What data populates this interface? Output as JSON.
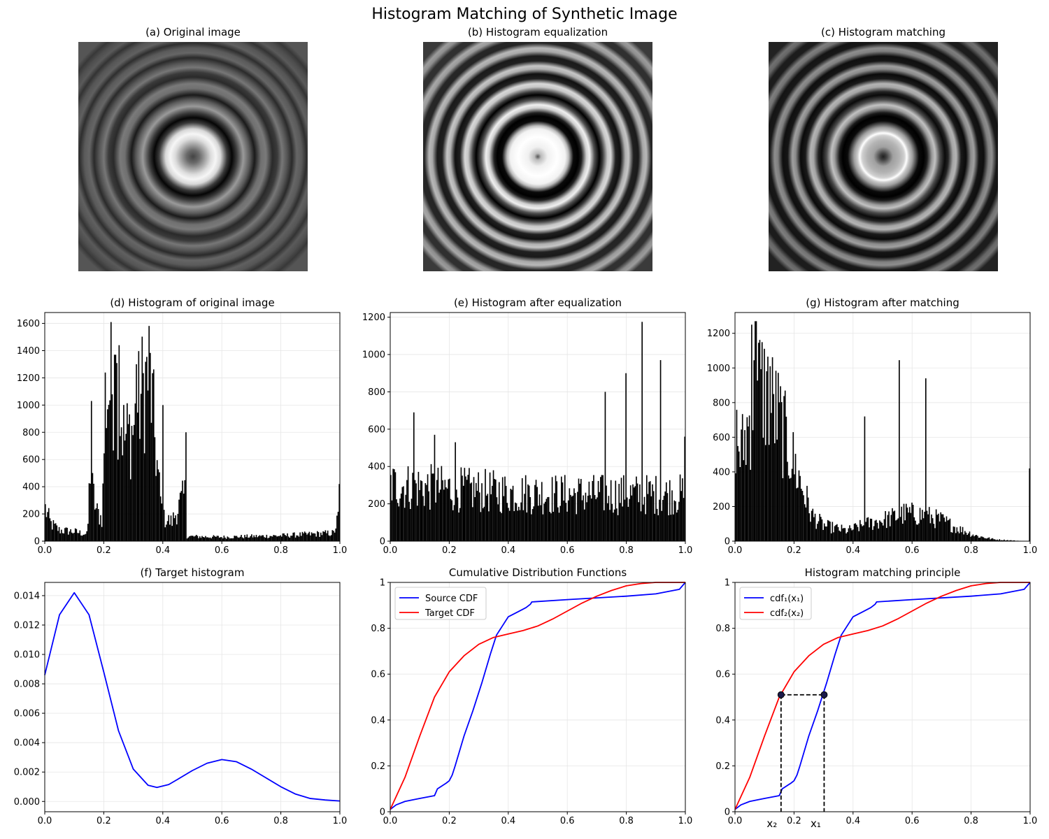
{
  "figure": {
    "title": "Histogram Matching of Synthetic Image"
  },
  "images": [
    {
      "title": "(a) Original image",
      "style": "original"
    },
    {
      "title": "(b) Histogram equalization",
      "style": "equalized"
    },
    {
      "title": "(c) Histogram matching",
      "style": "matched"
    }
  ],
  "colors": {
    "source": "#0000ff",
    "target": "#ff0000",
    "bars": "#000000",
    "grid": "#e6e6e6"
  },
  "chart_data": [
    {
      "id": "d",
      "type": "bar",
      "title": "(d) Histogram of original image",
      "xlim": [
        0,
        1
      ],
      "ylim": [
        0,
        1680
      ],
      "xticks": [
        0.0,
        0.2,
        0.4,
        0.6,
        0.8,
        1.0
      ],
      "yticks": [
        0,
        200,
        400,
        600,
        800,
        1000,
        1200,
        1400,
        1600
      ],
      "grid": true,
      "bins": 256,
      "profile": [
        [
          0.0,
          250
        ],
        [
          0.02,
          130
        ],
        [
          0.05,
          80
        ],
        [
          0.1,
          70
        ],
        [
          0.145,
          50
        ],
        [
          0.155,
          600
        ],
        [
          0.16,
          400
        ],
        [
          0.175,
          220
        ],
        [
          0.195,
          160
        ],
        [
          0.205,
          1050
        ],
        [
          0.24,
          1200
        ],
        [
          0.27,
          750
        ],
        [
          0.3,
          820
        ],
        [
          0.33,
          1100
        ],
        [
          0.355,
          1250
        ],
        [
          0.37,
          850
        ],
        [
          0.385,
          450
        ],
        [
          0.4,
          170
        ],
        [
          0.43,
          140
        ],
        [
          0.46,
          280
        ],
        [
          0.475,
          340
        ],
        [
          0.48,
          35
        ],
        [
          0.6,
          30
        ],
        [
          0.8,
          40
        ],
        [
          0.98,
          60
        ],
        [
          1.0,
          220
        ]
      ],
      "spikes": [
        [
          0.157,
          1030
        ],
        [
          0.225,
          1610
        ],
        [
          0.238,
          1370
        ],
        [
          0.253,
          1440
        ],
        [
          0.352,
          1530
        ],
        [
          0.312,
          1300
        ],
        [
          0.4,
          1000
        ],
        [
          0.477,
          800
        ],
        [
          0.997,
          420
        ]
      ]
    },
    {
      "id": "e",
      "type": "bar",
      "title": "(e) Histogram after equalization",
      "xlim": [
        0,
        1
      ],
      "ylim": [
        0,
        1225
      ],
      "xticks": [
        0.0,
        0.2,
        0.4,
        0.6,
        0.8,
        1.0
      ],
      "yticks": [
        0,
        200,
        400,
        600,
        800,
        1000,
        1200
      ],
      "grid": true,
      "bins": 256,
      "profile": [
        [
          0.0,
          300
        ],
        [
          0.2,
          280
        ],
        [
          0.4,
          260
        ],
        [
          0.6,
          250
        ],
        [
          0.8,
          250
        ],
        [
          1.0,
          250
        ]
      ],
      "spikes": [
        [
          0.08,
          690
        ],
        [
          0.15,
          570
        ],
        [
          0.22,
          530
        ],
        [
          0.73,
          800
        ],
        [
          0.8,
          900
        ],
        [
          0.852,
          1175
        ],
        [
          0.915,
          970
        ],
        [
          0.998,
          560
        ]
      ]
    },
    {
      "id": "g",
      "type": "bar",
      "title": "(g) Histogram after matching",
      "xlim": [
        0,
        1
      ],
      "ylim": [
        0,
        1320
      ],
      "xticks": [
        0.0,
        0.2,
        0.4,
        0.6,
        0.8,
        1.0
      ],
      "yticks": [
        0,
        200,
        400,
        600,
        800,
        1000,
        1200
      ],
      "grid": true,
      "bins": 256,
      "profile": [
        [
          0.0,
          650
        ],
        [
          0.02,
          500
        ],
        [
          0.05,
          700
        ],
        [
          0.08,
          900
        ],
        [
          0.11,
          850
        ],
        [
          0.15,
          700
        ],
        [
          0.19,
          500
        ],
        [
          0.23,
          300
        ],
        [
          0.26,
          150
        ],
        [
          0.3,
          90
        ],
        [
          0.38,
          60
        ],
        [
          0.45,
          100
        ],
        [
          0.52,
          130
        ],
        [
          0.58,
          160
        ],
        [
          0.64,
          150
        ],
        [
          0.7,
          120
        ],
        [
          0.76,
          70
        ],
        [
          0.82,
          30
        ],
        [
          0.88,
          10
        ],
        [
          0.95,
          3
        ],
        [
          1.0,
          0
        ]
      ],
      "spikes": [
        [
          0.058,
          1250
        ],
        [
          0.07,
          1270
        ],
        [
          0.12,
          1010
        ],
        [
          0.44,
          720
        ],
        [
          0.556,
          1045
        ],
        [
          0.645,
          940
        ],
        [
          0.998,
          420
        ]
      ]
    },
    {
      "id": "f",
      "type": "line",
      "title": "(f) Target histogram",
      "xlim": [
        0,
        1
      ],
      "ylim": [
        -0.0007,
        0.0149
      ],
      "xticks": [
        0.0,
        0.2,
        0.4,
        0.6,
        0.8,
        1.0
      ],
      "yticks": [
        0.0,
        0.002,
        0.004,
        0.006,
        0.008,
        0.01,
        0.012,
        0.014
      ],
      "ytick_labels": [
        "0.000",
        "0.002",
        "0.004",
        "0.006",
        "0.008",
        "0.010",
        "0.012",
        "0.014"
      ],
      "grid": true,
      "series": [
        {
          "color": "#0000ff",
          "x": [
            0.0,
            0.05,
            0.1,
            0.15,
            0.2,
            0.25,
            0.3,
            0.35,
            0.38,
            0.42,
            0.45,
            0.5,
            0.55,
            0.6,
            0.65,
            0.7,
            0.75,
            0.8,
            0.85,
            0.9,
            0.95,
            1.0
          ],
          "y": [
            0.0086,
            0.0127,
            0.0142,
            0.0127,
            0.0088,
            0.0048,
            0.0022,
            0.0011,
            0.00095,
            0.00115,
            0.0015,
            0.0021,
            0.0026,
            0.00285,
            0.0027,
            0.0022,
            0.0016,
            0.001,
            0.0005,
            0.0002,
            0.0001,
            3e-05
          ]
        }
      ]
    },
    {
      "id": "cdf",
      "type": "line",
      "title": "Cumulative Distribution Functions",
      "xlim": [
        0,
        1
      ],
      "ylim": [
        0,
        1
      ],
      "xticks": [
        0.0,
        0.2,
        0.4,
        0.6,
        0.8,
        1.0
      ],
      "yticks": [
        0.0,
        0.2,
        0.4,
        0.6,
        0.8,
        1.0
      ],
      "grid": true,
      "legend": "upper-left",
      "series": [
        {
          "name": "Source CDF",
          "color": "#0000ff",
          "x": [
            0.0,
            0.02,
            0.05,
            0.1,
            0.15,
            0.155,
            0.16,
            0.19,
            0.2,
            0.21,
            0.22,
            0.25,
            0.28,
            0.31,
            0.34,
            0.36,
            0.37,
            0.38,
            0.39,
            0.4,
            0.43,
            0.46,
            0.475,
            0.48,
            0.6,
            0.8,
            0.9,
            0.98,
            1.0
          ],
          "y": [
            0.01,
            0.03,
            0.045,
            0.058,
            0.07,
            0.085,
            0.1,
            0.125,
            0.135,
            0.16,
            0.2,
            0.33,
            0.44,
            0.56,
            0.69,
            0.77,
            0.79,
            0.81,
            0.83,
            0.85,
            0.87,
            0.89,
            0.905,
            0.915,
            0.925,
            0.94,
            0.95,
            0.97,
            1.0
          ]
        },
        {
          "name": "Target CDF",
          "color": "#ff0000",
          "x": [
            0.0,
            0.05,
            0.1,
            0.15,
            0.2,
            0.25,
            0.3,
            0.35,
            0.4,
            0.45,
            0.5,
            0.55,
            0.6,
            0.65,
            0.7,
            0.75,
            0.8,
            0.85,
            0.9,
            1.0
          ],
          "y": [
            0.01,
            0.15,
            0.33,
            0.5,
            0.61,
            0.68,
            0.73,
            0.76,
            0.775,
            0.79,
            0.81,
            0.84,
            0.875,
            0.91,
            0.94,
            0.965,
            0.985,
            0.995,
            1.0,
            1.0
          ]
        }
      ]
    },
    {
      "id": "principle",
      "type": "line",
      "title": "Histogram matching principle",
      "xlim": [
        0,
        1
      ],
      "ylim": [
        0,
        1
      ],
      "xticks": [
        0.0,
        0.2,
        0.4,
        0.6,
        0.8,
        1.0
      ],
      "xtick_labels_hidden": [
        0.2
      ],
      "yticks": [
        0.0,
        0.2,
        0.4,
        0.6,
        0.8,
        1.0
      ],
      "grid": true,
      "legend": "upper-left",
      "series": [
        {
          "name": "cdf₁(x₁)",
          "color": "#0000ff",
          "x": [
            0.0,
            0.02,
            0.05,
            0.1,
            0.15,
            0.155,
            0.16,
            0.19,
            0.2,
            0.21,
            0.22,
            0.25,
            0.28,
            0.31,
            0.34,
            0.36,
            0.37,
            0.38,
            0.39,
            0.4,
            0.43,
            0.46,
            0.475,
            0.48,
            0.6,
            0.8,
            0.9,
            0.98,
            1.0
          ],
          "y": [
            0.01,
            0.03,
            0.045,
            0.058,
            0.07,
            0.085,
            0.1,
            0.125,
            0.135,
            0.16,
            0.2,
            0.33,
            0.44,
            0.56,
            0.69,
            0.77,
            0.79,
            0.81,
            0.83,
            0.85,
            0.87,
            0.89,
            0.905,
            0.915,
            0.925,
            0.94,
            0.95,
            0.97,
            1.0
          ]
        },
        {
          "name": "cdf₂(x₂)",
          "color": "#ff0000",
          "x": [
            0.0,
            0.05,
            0.1,
            0.15,
            0.2,
            0.25,
            0.3,
            0.35,
            0.4,
            0.45,
            0.5,
            0.55,
            0.6,
            0.65,
            0.7,
            0.75,
            0.8,
            0.85,
            0.9,
            1.0
          ],
          "y": [
            0.01,
            0.15,
            0.33,
            0.5,
            0.61,
            0.68,
            0.73,
            0.76,
            0.775,
            0.79,
            0.81,
            0.84,
            0.875,
            0.91,
            0.94,
            0.965,
            0.985,
            0.995,
            1.0,
            1.0
          ]
        }
      ],
      "annotation": {
        "x1": 0.302,
        "x2": 0.156,
        "y": 0.51,
        "x1_label": "x₁",
        "x2_label": "x₂"
      }
    }
  ]
}
